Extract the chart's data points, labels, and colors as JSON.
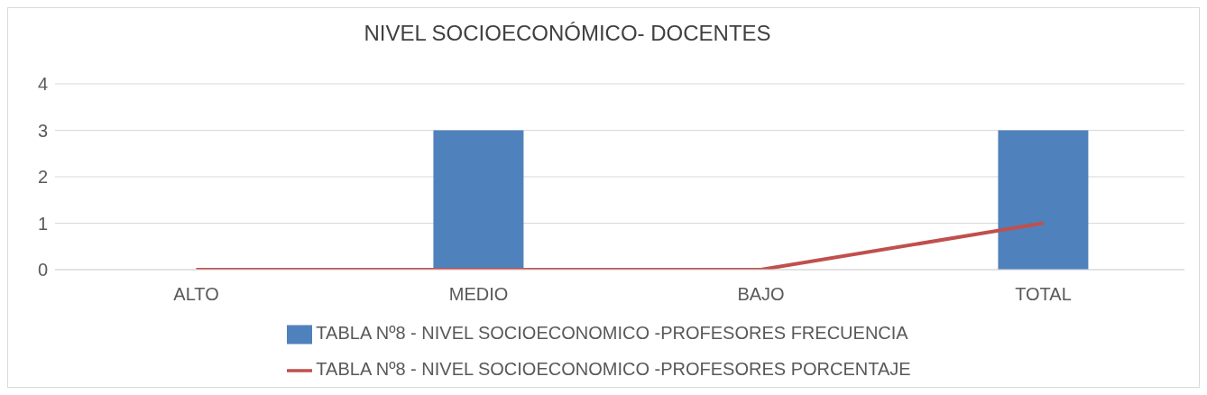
{
  "chart_data": {
    "type": "bar",
    "title": "NIVEL SOCIOECONÓMICO- DOCENTES",
    "categories": [
      "ALTO",
      "MEDIO",
      "BAJO",
      "TOTAL"
    ],
    "series": [
      {
        "name": "TABLA Nº8 - NIVEL SOCIOECONOMICO -PROFESORES FRECUENCIA",
        "color": "#4f81bd",
        "values": [
          0,
          3,
          0,
          3
        ]
      },
      {
        "name": "TABLA Nº8 - NIVEL SOCIOECONOMICO -PROFESORES PORCENTAJE",
        "type": "line",
        "color": "#c0504d",
        "values": [
          0,
          0,
          0,
          1
        ]
      }
    ],
    "ylim": [
      0,
      4
    ],
    "yticks": [
      0,
      1,
      2,
      3,
      4
    ],
    "grid": "y",
    "legend": "bottom",
    "marker": "none",
    "line_style": "solid"
  }
}
